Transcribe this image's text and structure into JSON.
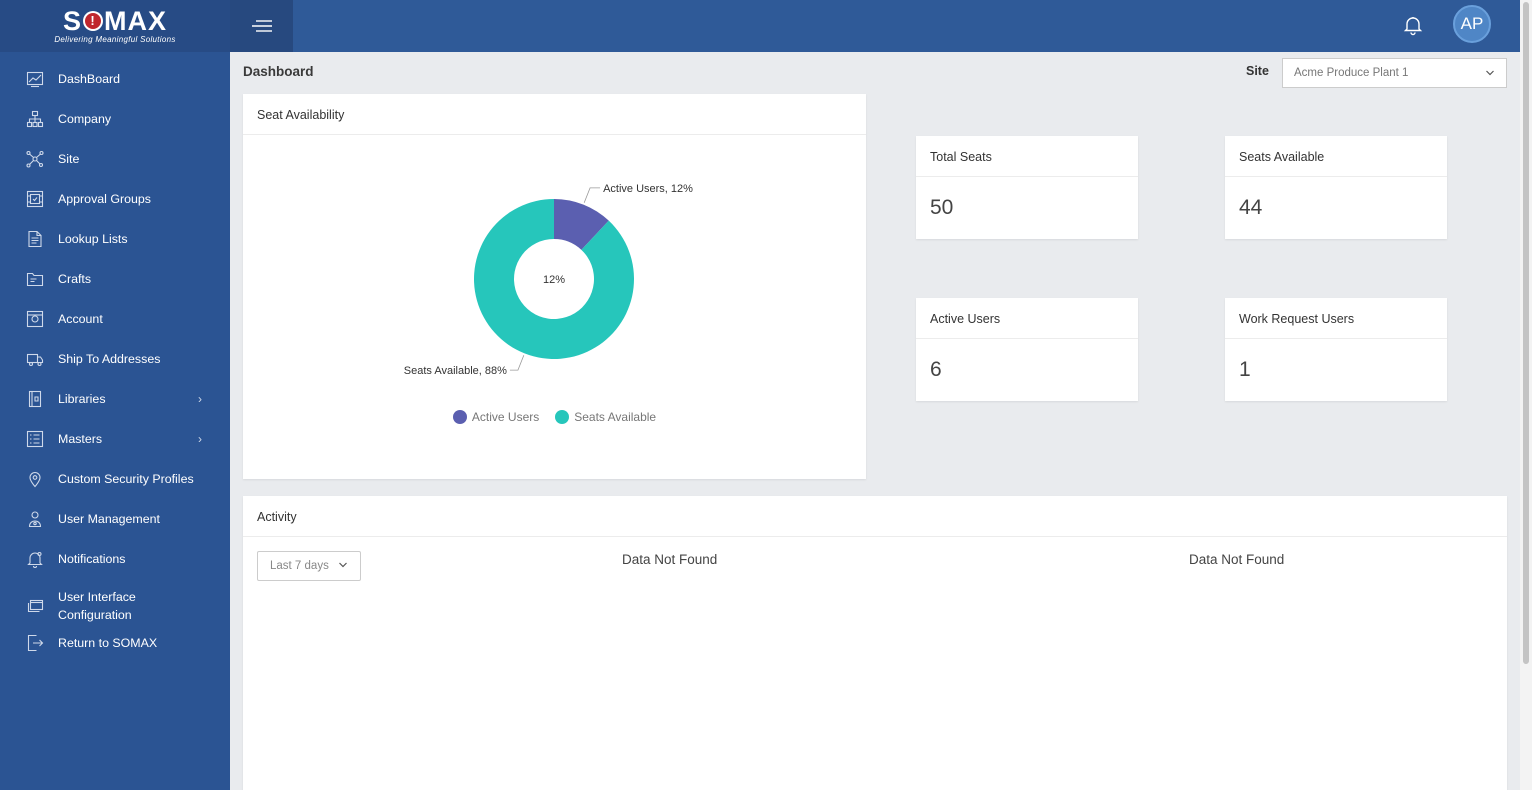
{
  "brand": {
    "name_pre": "S",
    "name_post": "MAX",
    "tagline": "Delivering Meaningful Solutions"
  },
  "sidebar": {
    "items": [
      {
        "label": "DashBoard",
        "icon": "chart-line-icon"
      },
      {
        "label": "Company",
        "icon": "org-chart-icon"
      },
      {
        "label": "Site",
        "icon": "network-icon"
      },
      {
        "label": "Approval Groups",
        "icon": "approval-groups-icon"
      },
      {
        "label": "Lookup Lists",
        "icon": "list-document-icon"
      },
      {
        "label": "Crafts",
        "icon": "folder-icon"
      },
      {
        "label": "Account",
        "icon": "account-icon"
      },
      {
        "label": "Ship To Addresses",
        "icon": "truck-icon"
      },
      {
        "label": "Libraries",
        "icon": "library-icon",
        "has_children": true
      },
      {
        "label": "Masters",
        "icon": "checklist-icon",
        "has_children": true
      },
      {
        "label": "Custom Security Profiles",
        "icon": "map-pin-icon"
      },
      {
        "label": "User Management",
        "icon": "user-icon"
      },
      {
        "label": "Notifications",
        "icon": "bell-settings-icon"
      },
      {
        "label": "User Interface",
        "label2": "Configuration",
        "icon": "windows-icon"
      },
      {
        "label": "Return to SOMAX",
        "icon": "exit-icon"
      }
    ]
  },
  "header": {
    "avatar_initials": "AP"
  },
  "page": {
    "title": "Dashboard",
    "site_label": "Site",
    "site_value": "Acme Produce Plant 1"
  },
  "seat_card": {
    "title": "Seat Availability"
  },
  "chart_data": {
    "type": "pie",
    "categories": [
      "Active Users",
      "Seats Available"
    ],
    "values": [
      12,
      88
    ],
    "labels": [
      "Active Users, 12%",
      "Seats Available, 88%"
    ],
    "center_label": "12%",
    "colors": [
      "#5b5fb0",
      "#26c6bb"
    ],
    "legend": "bottom"
  },
  "stats": {
    "total_seats": {
      "label": "Total Seats",
      "value": "50"
    },
    "seats_available": {
      "label": "Seats Available",
      "value": "44"
    },
    "active_users": {
      "label": "Active Users",
      "value": "6"
    },
    "work_request_users": {
      "label": "Work Request Users",
      "value": "1"
    }
  },
  "activity": {
    "title": "Activity",
    "range": "Last 7 days",
    "no_data_1": "Data Not Found",
    "no_data_2": "Data Not Found"
  }
}
